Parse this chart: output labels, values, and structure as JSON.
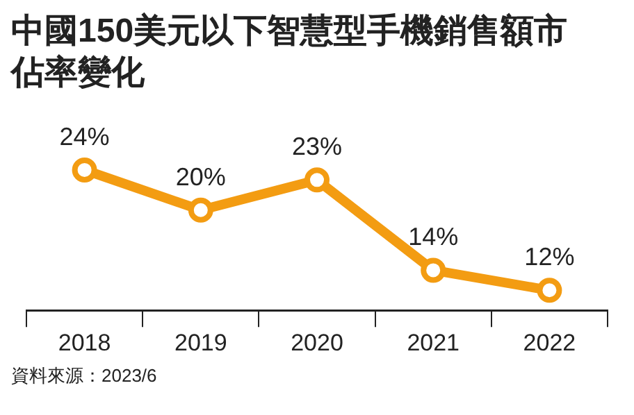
{
  "chart_data": {
    "type": "line",
    "title": "中國150美元以下智慧型手機銷售額市佔率變化",
    "categories": [
      "2018",
      "2019",
      "2020",
      "2021",
      "2022"
    ],
    "series": [
      {
        "color": "#f39c12",
        "values": [
          24,
          20,
          23,
          14,
          12
        ],
        "value_labels": [
          "24%",
          "20%",
          "23%",
          "14%",
          "12%"
        ]
      }
    ],
    "marker": "circle",
    "line_style": "solid",
    "grid": false,
    "legend": false,
    "annotations": [
      "資料來源：2023/6"
    ]
  }
}
